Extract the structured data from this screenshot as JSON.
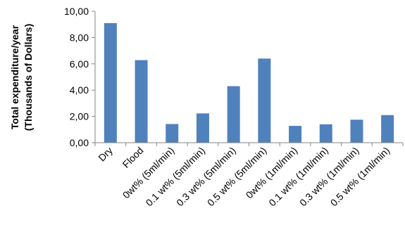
{
  "chart_data": {
    "type": "bar",
    "categories": [
      "Dry",
      "Flood",
      "0wt% (5ml/min)",
      "0.1 wt% (5ml/min)",
      "0.3 wt% (5ml/min)",
      "0.5 wt% (5ml/min)",
      "0wt% (1ml/min)",
      "0.1 wt% (1ml/min)",
      "0.3 wt% (1ml/min)",
      "0.5 wt% (1ml/min)"
    ],
    "values": [
      9.1,
      6.28,
      1.42,
      2.23,
      4.3,
      6.4,
      1.28,
      1.4,
      1.75,
      2.1
    ],
    "ylabel_line1": "Total expenditure/year",
    "ylabel_line2": "(Thousands of  Dollars)",
    "xlabel": "",
    "ylim": [
      0,
      10
    ],
    "yticks": [
      0,
      2,
      4,
      6,
      8,
      10
    ],
    "ytick_labels": [
      "0,00",
      "2,00",
      "4,00",
      "6,00",
      "8,00",
      "10,00"
    ],
    "bar_color": "#4f81bd",
    "axis_color": "#868686",
    "grid": false,
    "legend": "none"
  }
}
